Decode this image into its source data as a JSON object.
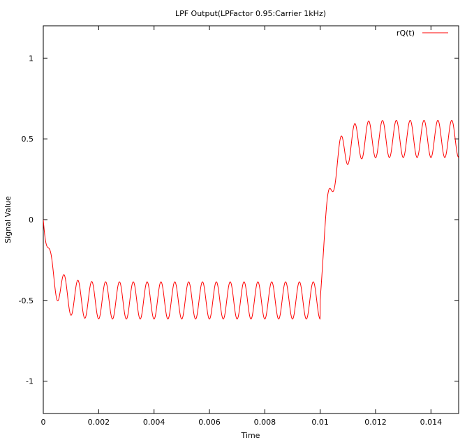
{
  "chart_data": {
    "type": "line",
    "title": "LPF Output(LPFactor 0.95:Carrier 1kHz)",
    "xlabel": "Time",
    "ylabel": "Signal Value",
    "xlim": [
      0,
      0.015
    ],
    "ylim": [
      -1.2,
      1.2
    ],
    "x_ticks": [
      0,
      0.002,
      0.004,
      0.006,
      0.008,
      0.01,
      0.012,
      0.014
    ],
    "x_tick_labels": [
      "0",
      "0.002",
      "0.004",
      "0.006",
      "0.008",
      "0.01",
      "0.012",
      "0.014"
    ],
    "y_ticks": [
      -1,
      -0.5,
      0,
      0.5,
      1
    ],
    "y_tick_labels": [
      "-1",
      "-0.5",
      "0",
      "0.5",
      "1"
    ],
    "grid": false,
    "legend_position": "top-right",
    "series": [
      {
        "name": "rQ(t)",
        "color": "#ff0000",
        "model": {
          "segments": [
            {
              "t_start": 0.0,
              "t_end": 0.01,
              "level": -0.5
            },
            {
              "t_start": 0.01,
              "t_end": 0.015,
              "level": 0.5
            }
          ],
          "ripple_amplitude": 0.115,
          "ripple_frequency_hz": 2000,
          "lpf_factor": 0.95,
          "carrier_hz": 1000
        }
      }
    ]
  }
}
